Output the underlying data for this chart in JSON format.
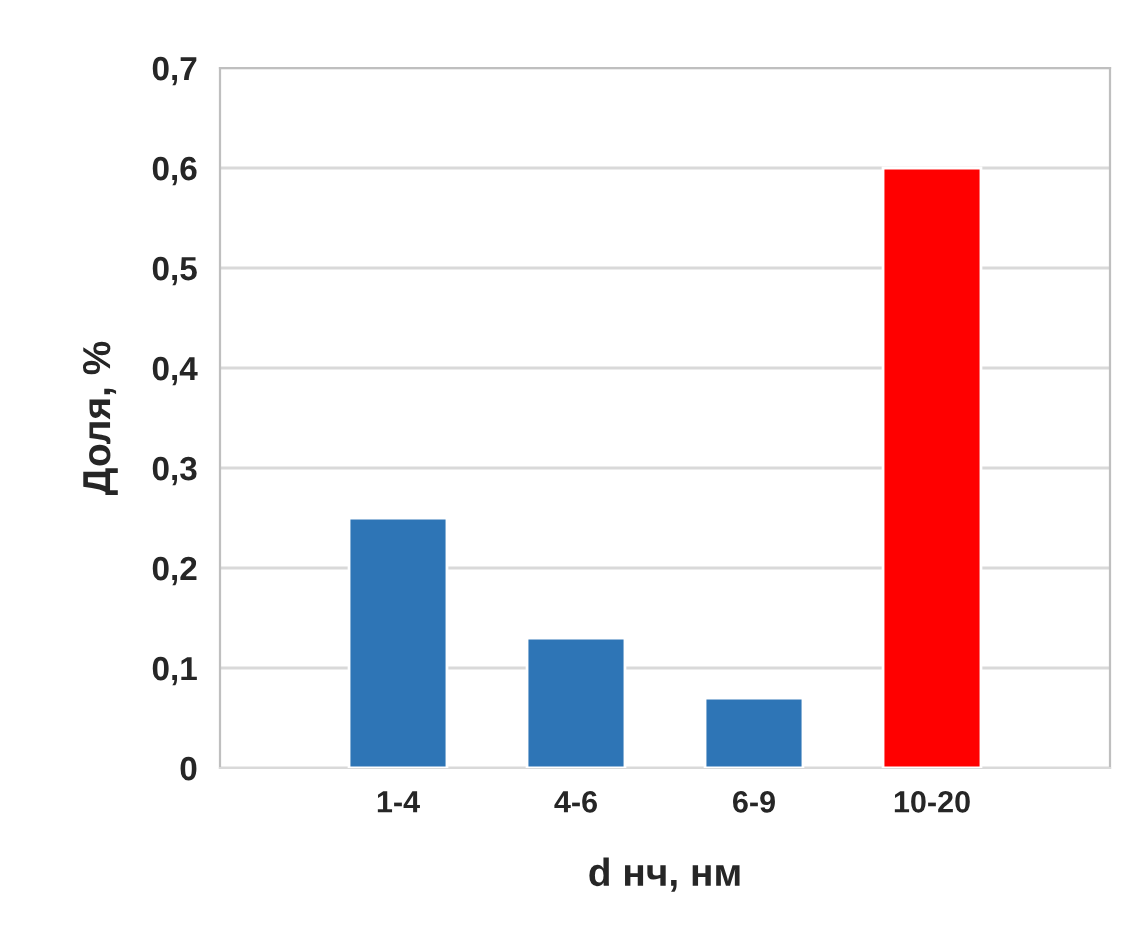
{
  "chart_data": {
    "type": "bar",
    "xlabel": "d нч, нм",
    "ylabel": "Доля, %",
    "categories": [
      "1-4",
      "4-6",
      "6-9",
      "10-20"
    ],
    "values": [
      0.25,
      0.13,
      0.07,
      0.6
    ],
    "colors": [
      "#2e75b6",
      "#2e75b6",
      "#2e75b6",
      "#ff0000"
    ],
    "ylim": [
      0,
      0.7
    ],
    "yticks": [
      0,
      {
        "value": 0.1,
        "label": "0,1"
      },
      {
        "value": 0.2,
        "label": "0,2"
      },
      {
        "value": 0.3,
        "label": "0,3"
      },
      {
        "value": 0.4,
        "label": "0,4"
      },
      {
        "value": 0.5,
        "label": "0,5"
      },
      {
        "value": 0.6,
        "label": "0,6"
      },
      {
        "value": 0.7,
        "label": "0,7"
      }
    ],
    "grid": "y",
    "legend": false
  }
}
